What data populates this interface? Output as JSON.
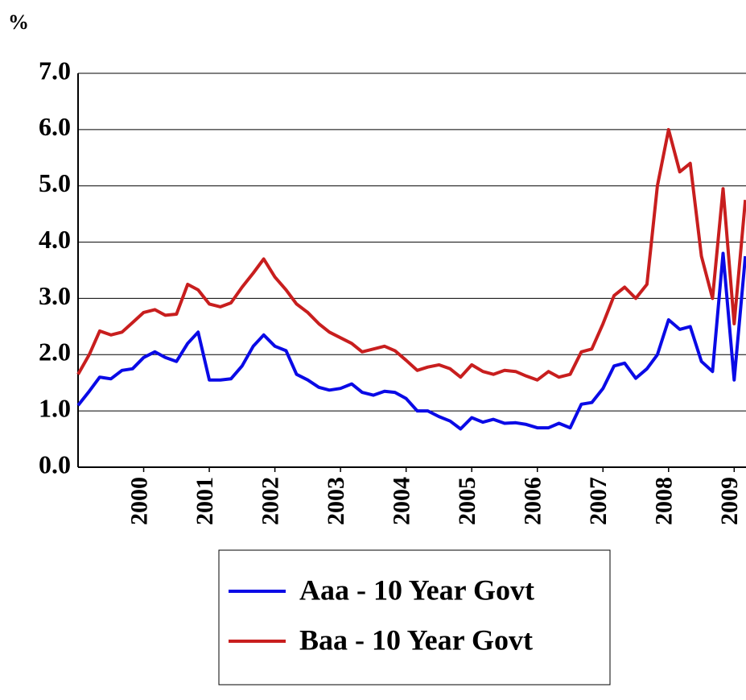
{
  "chart_data": {
    "type": "line",
    "y_axis_label": "%",
    "x": [
      1999.0,
      1999.17,
      1999.33,
      1999.5,
      1999.67,
      1999.83,
      2000.0,
      2000.17,
      2000.33,
      2000.5,
      2000.67,
      2000.83,
      2001.0,
      2001.17,
      2001.33,
      2001.5,
      2001.67,
      2001.83,
      2002.0,
      2002.17,
      2002.33,
      2002.5,
      2002.67,
      2002.83,
      2003.0,
      2003.17,
      2003.33,
      2003.5,
      2003.67,
      2003.83,
      2004.0,
      2004.17,
      2004.33,
      2004.5,
      2004.67,
      2004.83,
      2005.0,
      2005.17,
      2005.33,
      2005.5,
      2005.67,
      2005.83,
      2006.0,
      2006.17,
      2006.33,
      2006.5,
      2006.67,
      2006.83,
      2007.0,
      2007.17,
      2007.33,
      2007.5,
      2007.67,
      2007.83,
      2008.0,
      2008.17,
      2008.33,
      2008.5,
      2008.67,
      2008.83,
      2009.0,
      2009.17
    ],
    "series": [
      {
        "name": "Aaa - 10 Year Govt",
        "color": "#0a0ae6",
        "values": [
          1.1,
          1.35,
          1.6,
          1.57,
          1.72,
          1.75,
          1.95,
          2.05,
          1.95,
          1.88,
          2.2,
          2.4,
          1.55,
          1.55,
          1.57,
          1.8,
          2.15,
          2.35,
          2.15,
          2.07,
          1.65,
          1.55,
          1.42,
          1.37,
          1.4,
          1.48,
          1.33,
          1.28,
          1.35,
          1.33,
          1.22,
          1.0,
          1.0,
          0.9,
          0.82,
          0.68,
          0.88,
          0.8,
          0.85,
          0.78,
          0.79,
          0.76,
          0.7,
          0.7,
          0.78,
          0.7,
          1.12,
          1.15,
          1.4,
          1.8,
          1.85,
          1.58,
          1.75,
          2.0,
          2.62,
          2.45,
          2.5,
          1.88,
          1.7,
          3.8,
          1.55,
          3.75
        ]
      },
      {
        "name": "Baa - 10 Year Govt",
        "color": "#c81e1e",
        "values": [
          1.65,
          2.0,
          2.42,
          2.35,
          2.4,
          2.57,
          2.75,
          2.8,
          2.7,
          2.72,
          3.25,
          3.15,
          2.9,
          2.85,
          2.92,
          3.2,
          3.45,
          3.7,
          3.38,
          3.15,
          2.9,
          2.75,
          2.55,
          2.4,
          2.3,
          2.2,
          2.05,
          2.1,
          2.15,
          2.07,
          1.9,
          1.72,
          1.78,
          1.82,
          1.75,
          1.6,
          1.82,
          1.7,
          1.65,
          1.72,
          1.7,
          1.62,
          1.55,
          1.7,
          1.6,
          1.65,
          2.05,
          2.1,
          2.55,
          3.05,
          3.2,
          3.0,
          3.25,
          5.0,
          6.0,
          5.25,
          5.4,
          3.75,
          3.0,
          4.95,
          2.55,
          4.75
        ]
      }
    ],
    "xlim": [
      1999.0,
      2009.18
    ],
    "xticks": [
      2000,
      2001,
      2002,
      2003,
      2004,
      2005,
      2006,
      2007,
      2008,
      2009
    ],
    "ylim": [
      0,
      7
    ],
    "yticks": [
      {
        "value": 0,
        "label": "0.0"
      },
      {
        "value": 1,
        "label": "1.0"
      },
      {
        "value": 2,
        "label": "2.0"
      },
      {
        "value": 3,
        "label": "3.0"
      },
      {
        "value": 4,
        "label": "4.0"
      },
      {
        "value": 5,
        "label": "5.0"
      },
      {
        "value": 6,
        "label": "6.0"
      },
      {
        "value": 7,
        "label": "7.0"
      }
    ],
    "grid": true,
    "legend": "bottom"
  }
}
